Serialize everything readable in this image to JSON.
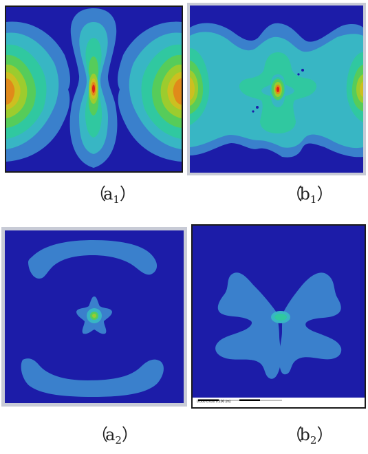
{
  "figure": {
    "panels": [
      {
        "id": "a1",
        "letter": "a",
        "index": "1",
        "open": "（",
        "close": "）"
      },
      {
        "id": "b1",
        "letter": "b",
        "index": "1",
        "open": "（",
        "close": "）"
      },
      {
        "id": "a2",
        "letter": "a",
        "index": "2",
        "open": "（",
        "close": "）"
      },
      {
        "id": "b2",
        "letter": "b",
        "index": "2",
        "open": "（",
        "close": "）"
      }
    ],
    "scale_text": "0.000       0.050       0.100 (m)"
  },
  "colors": {
    "background_field": "#1c1ca8",
    "level_1": "#3a80cc",
    "level_2": "#38b6c4",
    "level_3": "#30c8a0",
    "level_4": "#56cc5a",
    "level_5": "#9ccc2e",
    "level_6": "#cdbf20",
    "level_7": "#e08a1a",
    "peak": "#dd2218",
    "frame_border": "#1a1a1a",
    "frame_gray": "#c8cbd6"
  }
}
